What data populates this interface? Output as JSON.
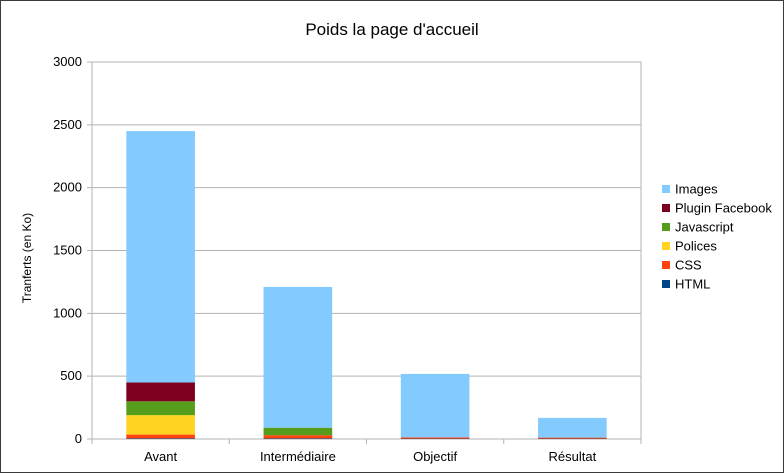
{
  "chart_data": {
    "type": "bar",
    "stacked": true,
    "title": "Poids la page d'accueil",
    "xlabel": "",
    "ylabel": "Tranferts (en Ko)",
    "ylim": [
      0,
      3000
    ],
    "yticks": [
      0,
      500,
      1000,
      1500,
      2000,
      2500,
      3000
    ],
    "grid": true,
    "legend_position": "right",
    "categories": [
      "Avant",
      "Intermédiaire",
      "Objectif",
      "Résultat"
    ],
    "series": [
      {
        "name": "HTML",
        "color": "#004586",
        "values": [
          5,
          5,
          3,
          3
        ]
      },
      {
        "name": "CSS",
        "color": "#ff420e",
        "values": [
          30,
          25,
          10,
          8
        ]
      },
      {
        "name": "Polices",
        "color": "#ffd320",
        "values": [
          155,
          0,
          0,
          0
        ]
      },
      {
        "name": "Javascript",
        "color": "#579d1c",
        "values": [
          110,
          60,
          0,
          0
        ]
      },
      {
        "name": "Plugin Facebook",
        "color": "#7e0021",
        "values": [
          150,
          0,
          0,
          0
        ]
      },
      {
        "name": "Images",
        "color": "#83caff",
        "values": [
          2000,
          1120,
          505,
          157
        ]
      }
    ],
    "legend_order": [
      "Images",
      "Plugin Facebook",
      "Javascript",
      "Polices",
      "CSS",
      "HTML"
    ]
  }
}
